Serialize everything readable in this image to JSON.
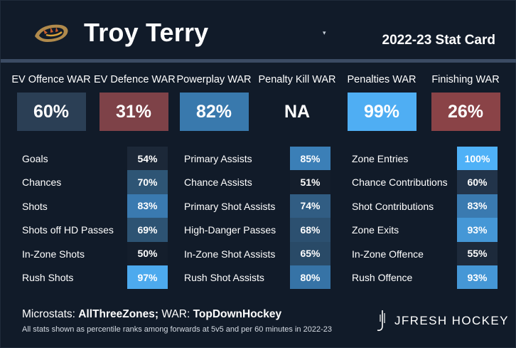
{
  "header": {
    "player_name": "Troy Terry",
    "card_title": "2022-23 Stat Card",
    "caret": "▾"
  },
  "war": [
    {
      "label": "EV Offence WAR",
      "value": "60%",
      "color": "#2b3f55"
    },
    {
      "label": "EV Defence WAR",
      "value": "31%",
      "color": "#7e4248"
    },
    {
      "label": "Powerplay WAR",
      "value": "82%",
      "color": "#3979ad"
    },
    {
      "label": "Penalty Kill WAR",
      "value": "NA",
      "color": "#111b29"
    },
    {
      "label": "Penalties WAR",
      "value": "99%",
      "color": "#4faef3"
    },
    {
      "label": "Finishing WAR",
      "value": "26%",
      "color": "#8a4347"
    }
  ],
  "stats": [
    {
      "rows": [
        {
          "label": "Goals",
          "value": "54%",
          "color": "#1c2838"
        },
        {
          "label": "Chances",
          "value": "70%",
          "color": "#2e5575"
        },
        {
          "label": "Shots",
          "value": "83%",
          "color": "#3a7ab0"
        },
        {
          "label": "Shots off HD Passes",
          "value": "69%",
          "color": "#2d5373"
        },
        {
          "label": "In-Zone Shots",
          "value": "50%",
          "color": "#141e2c"
        },
        {
          "label": "Rush Shots",
          "value": "97%",
          "color": "#4daaee"
        }
      ]
    },
    {
      "rows": [
        {
          "label": "Primary Assists",
          "value": "85%",
          "color": "#3b7fb7"
        },
        {
          "label": "Chance Assists",
          "value": "51%",
          "color": "#141e2c"
        },
        {
          "label": "Primary Shot Assists",
          "value": "74%",
          "color": "#315d83"
        },
        {
          "label": "High-Danger Passes",
          "value": "68%",
          "color": "#2c5070"
        },
        {
          "label": "In-Zone Shot Assists",
          "value": "65%",
          "color": "#294a67"
        },
        {
          "label": "Rush Shot Assists",
          "value": "80%",
          "color": "#3673a6"
        }
      ]
    },
    {
      "rows": [
        {
          "label": "Zone Entries",
          "value": "100%",
          "color": "#4fb1f7"
        },
        {
          "label": "Chance Contributions",
          "value": "60%",
          "color": "#22344a"
        },
        {
          "label": "Shot Contributions",
          "value": "83%",
          "color": "#3a7ab0"
        },
        {
          "label": "Zone Exits",
          "value": "93%",
          "color": "#4597d6"
        },
        {
          "label": "In-Zone Offence",
          "value": "55%",
          "color": "#1d2a3b"
        },
        {
          "label": "Rush Offence",
          "value": "93%",
          "color": "#4597d6"
        }
      ]
    }
  ],
  "footer": {
    "microstats_label": "Microstats: ",
    "microstats_source": "AllThreeZones;",
    "war_label": " WAR: ",
    "war_source": "TopDownHockey",
    "note": "All stats shown as percentile ranks among forwards at 5v5 and per 60 minutes in 2022-23",
    "brand": "JFRESH HOCKEY"
  },
  "icons": {
    "team_logo": "ducks-logo-icon",
    "brand_mark": "jfresh-mark-icon"
  }
}
